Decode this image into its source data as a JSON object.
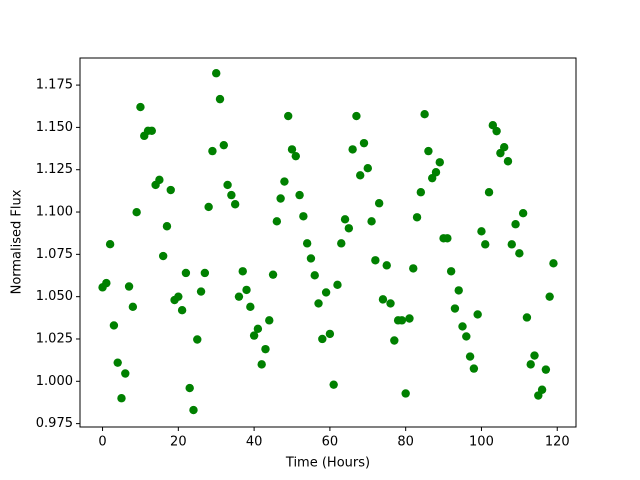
{
  "chart_data": {
    "type": "scatter",
    "xlabel": "Time (Hours)",
    "ylabel": "Normalised Flux",
    "color": "#008000",
    "x": [
      0,
      1,
      2,
      3,
      4,
      5,
      6,
      7,
      8,
      9,
      10,
      11,
      12,
      13,
      14,
      15,
      16,
      17,
      18,
      19,
      20,
      21,
      22,
      23,
      24,
      25,
      26,
      27,
      28,
      29,
      30,
      31,
      32,
      33,
      34,
      35,
      36,
      37,
      38,
      39,
      40,
      41,
      42,
      43,
      44,
      45,
      46,
      47,
      48,
      49,
      50,
      51,
      52,
      53,
      54,
      55,
      56,
      57,
      58,
      59,
      60,
      61,
      62,
      63,
      64,
      65,
      66,
      67,
      68,
      69,
      70,
      71,
      72,
      73,
      74,
      75,
      76,
      77,
      78,
      79,
      80,
      81,
      82,
      83,
      84,
      85,
      86,
      87,
      88,
      89,
      90,
      91,
      92,
      93,
      94,
      95,
      96,
      97,
      98,
      99,
      100,
      101,
      102,
      103,
      104,
      105,
      106,
      107,
      108,
      109,
      110,
      111,
      112,
      113,
      114,
      115,
      116,
      117,
      118,
      119
    ],
    "values": [
      1.0555,
      1.058,
      1.081,
      1.033,
      1.011,
      0.99,
      1.0046,
      1.056,
      1.044,
      1.0999,
      1.162,
      1.145,
      1.148,
      1.148,
      1.116,
      1.119,
      1.074,
      1.0916,
      1.113,
      1.048,
      1.05,
      1.042,
      1.064,
      0.996,
      0.983,
      1.0247,
      1.053,
      1.064,
      1.103,
      1.136,
      1.182,
      1.1667,
      1.1395,
      1.116,
      1.11,
      1.1046,
      1.05,
      1.065,
      1.054,
      1.044,
      1.027,
      1.031,
      1.01,
      1.019,
      1.036,
      1.063,
      1.0945,
      1.108,
      1.118,
      1.1567,
      1.137,
      1.133,
      1.11,
      1.0975,
      1.0815,
      1.0726,
      1.0626,
      1.046,
      1.025,
      1.0525,
      1.028,
      0.998,
      1.057,
      1.0815,
      1.0957,
      1.0904,
      1.137,
      1.1567,
      1.1217,
      1.1407,
      1.1259,
      1.0945,
      1.0715,
      1.1052,
      1.0484,
      1.0685,
      1.046,
      1.0241,
      1.036,
      1.036,
      0.9928,
      1.0371,
      1.0667,
      1.0969,
      1.1117,
      1.1578,
      1.136,
      1.12,
      1.1235,
      1.1294,
      1.0845,
      1.0845,
      1.065,
      1.043,
      1.0537,
      1.0324,
      1.0265,
      1.0146,
      1.0075,
      1.0395,
      1.0886,
      1.0809,
      1.1117,
      1.1513,
      1.1478,
      1.1348,
      1.1383,
      1.13,
      1.0809,
      1.0928,
      1.0756,
      1.0993,
      1.0377,
      1.01,
      1.0152,
      0.9916,
      0.995,
      1.0069,
      1.05,
      1.0697
    ],
    "xlim": [
      -5.95,
      124.95
    ],
    "xticks": [
      0,
      20,
      40,
      60,
      80,
      100,
      120
    ],
    "ylim": [
      0.973,
      1.191
    ],
    "yticks": [
      0.975,
      {
        "value": 1.0,
        "label": "1.000"
      },
      1.025,
      {
        "value": 1.05,
        "label": "1.050"
      },
      1.075,
      {
        "value": 1.1,
        "label": "1.100"
      },
      1.125,
      {
        "value": 1.15,
        "label": "1.150"
      },
      1.175
    ]
  }
}
